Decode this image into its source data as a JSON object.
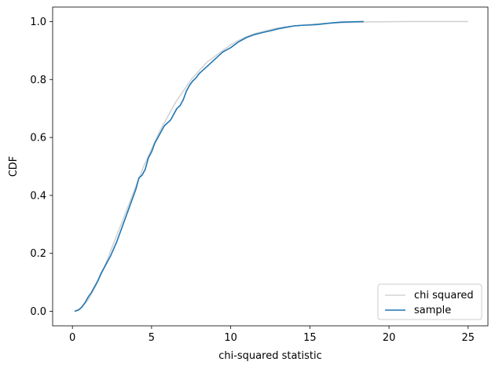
{
  "chart_data": {
    "type": "line",
    "title": "",
    "xlabel": "chi-squared statistic",
    "ylabel": "CDF",
    "xlim": [
      -1.25,
      26.25
    ],
    "ylim": [
      -0.05,
      1.05
    ],
    "xticks": [
      0,
      5,
      10,
      15,
      20,
      25
    ],
    "xtick_labels": [
      "0",
      "5",
      "10",
      "15",
      "20",
      "25"
    ],
    "yticks": [
      0.0,
      0.2,
      0.4,
      0.6,
      0.8,
      1.0
    ],
    "ytick_labels": [
      "0.0",
      "0.2",
      "0.4",
      "0.6",
      "0.8",
      "1.0"
    ],
    "grid": false,
    "legend_placement": "lower-right",
    "series": [
      {
        "name": "chi squared",
        "color": "#d3d3d3",
        "x": [
          0.1,
          0.5,
          1.0,
          1.5,
          2.0,
          2.5,
          3.0,
          3.5,
          4.0,
          4.5,
          5.0,
          5.5,
          6.0,
          6.5,
          7.0,
          7.5,
          8.0,
          8.5,
          9.0,
          9.5,
          10.0,
          10.5,
          11.0,
          11.5,
          12.0,
          12.5,
          13.0,
          13.5,
          14.0,
          15.0,
          16.0,
          17.0,
          18.0,
          19.0,
          20.0,
          21.0,
          22.0,
          23.0,
          24.0,
          25.0
        ],
        "y": [
          0.0,
          0.01,
          0.04,
          0.09,
          0.15,
          0.22,
          0.29,
          0.36,
          0.43,
          0.5,
          0.56,
          0.62,
          0.67,
          0.72,
          0.76,
          0.8,
          0.83,
          0.86,
          0.88,
          0.9,
          0.92,
          0.935,
          0.948,
          0.958,
          0.965,
          0.972,
          0.978,
          0.982,
          0.985,
          0.99,
          0.994,
          0.996,
          0.998,
          0.999,
          0.9995,
          1.0,
          1.0,
          1.0,
          1.0,
          1.0
        ]
      },
      {
        "name": "sample",
        "color": "#1f77b4",
        "x": [
          0.15,
          0.4,
          0.6,
          0.8,
          1.0,
          1.2,
          1.4,
          1.6,
          1.8,
          2.0,
          2.2,
          2.4,
          2.6,
          2.8,
          3.0,
          3.2,
          3.4,
          3.6,
          3.8,
          4.0,
          4.2,
          4.4,
          4.6,
          4.8,
          5.0,
          5.2,
          5.4,
          5.6,
          5.8,
          6.0,
          6.2,
          6.4,
          6.6,
          6.8,
          7.0,
          7.2,
          7.4,
          7.6,
          7.8,
          8.0,
          8.5,
          9.0,
          9.5,
          10.0,
          10.5,
          11.0,
          11.5,
          12.0,
          12.5,
          13.0,
          13.5,
          14.0,
          14.5,
          15.0,
          15.5,
          16.0,
          16.5,
          17.0,
          18.4
        ],
        "y": [
          0.0,
          0.005,
          0.015,
          0.03,
          0.05,
          0.065,
          0.085,
          0.105,
          0.13,
          0.15,
          0.17,
          0.19,
          0.215,
          0.24,
          0.27,
          0.3,
          0.33,
          0.36,
          0.39,
          0.42,
          0.46,
          0.47,
          0.49,
          0.53,
          0.55,
          0.58,
          0.6,
          0.62,
          0.64,
          0.65,
          0.66,
          0.68,
          0.7,
          0.71,
          0.73,
          0.76,
          0.78,
          0.795,
          0.805,
          0.82,
          0.845,
          0.87,
          0.895,
          0.91,
          0.93,
          0.945,
          0.955,
          0.962,
          0.968,
          0.975,
          0.98,
          0.985,
          0.987,
          0.988,
          0.99,
          0.993,
          0.996,
          0.998,
          1.0
        ]
      }
    ]
  }
}
